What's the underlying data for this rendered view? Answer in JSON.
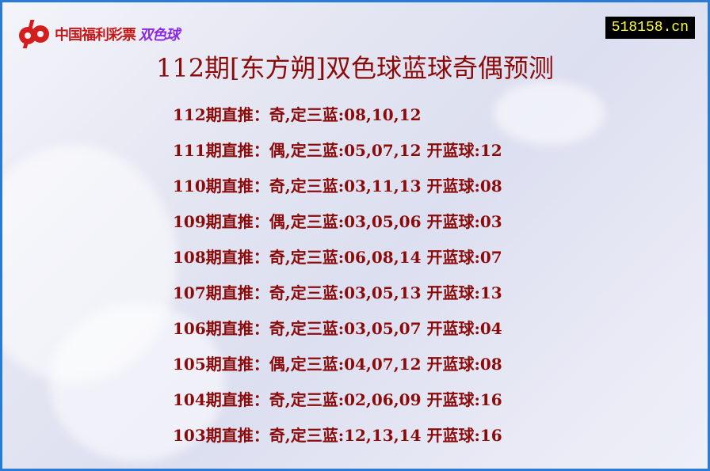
{
  "logo": {
    "text_red": "中国福利彩票",
    "text_purple": "双色球"
  },
  "site": "518158.cn",
  "title": "112期[东方朔]双色球蓝球奇偶预测",
  "rows": [
    "112期直推：奇,定三蓝:08,10,12",
    "111期直推：偶,定三蓝:05,07,12 开蓝球:12",
    "110期直推：奇,定三蓝:03,11,13 开蓝球:08",
    "109期直推：偶,定三蓝:03,05,06 开蓝球:03",
    "108期直推：奇,定三蓝:06,08,14 开蓝球:07",
    "107期直推：奇,定三蓝:03,05,13 开蓝球:13",
    "106期直推：奇,定三蓝:03,05,07 开蓝球:04",
    "105期直推：偶,定三蓝:04,07,12 开蓝球:08",
    "104期直推：奇,定三蓝:02,06,09 开蓝球:16",
    "103期直推：奇,定三蓝:12,13,14 开蓝球:16"
  ],
  "colors": {
    "text": "#8b0a0a",
    "border": "#2a7bd8",
    "site_bg": "#000000",
    "site_fg": "#ffff33"
  }
}
